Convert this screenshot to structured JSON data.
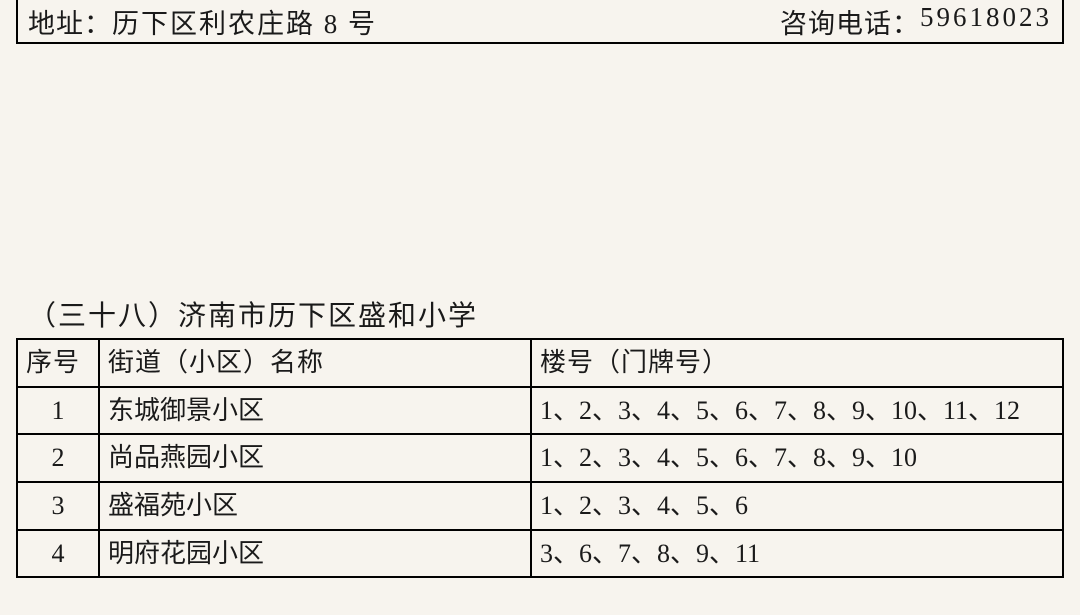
{
  "header": {
    "addr_label": "地址：",
    "addr_value": "历下区利农庄路 8 号",
    "phone_label": "咨询电话：",
    "phone_value": "59618023"
  },
  "section": {
    "title": "（三十八）济南市历下区盛和小学"
  },
  "table": {
    "columns": {
      "num": "序号",
      "name": "街道（小区）名称",
      "bldg": "楼号（门牌号）"
    },
    "rows": [
      {
        "num": "1",
        "name": "东城御景小区",
        "bldg": "1、2、3、4、5、6、7、8、9、10、11、12"
      },
      {
        "num": "2",
        "name": "尚品燕园小区",
        "bldg": "1、2、3、4、5、6、7、8、9、10"
      },
      {
        "num": "3",
        "name": "盛福苑小区",
        "bldg": "1、2、3、4、5、6"
      },
      {
        "num": "4",
        "name": "明府花园小区",
        "bldg": "3、6、7、8、9、11"
      }
    ]
  },
  "style": {
    "background_color": "#f7f4ee",
    "text_color": "#1a1a1a",
    "border_color": "#000000",
    "font_family": "SimSun",
    "title_fontsize": 28,
    "cell_fontsize": 26,
    "header_fontsize": 27
  }
}
